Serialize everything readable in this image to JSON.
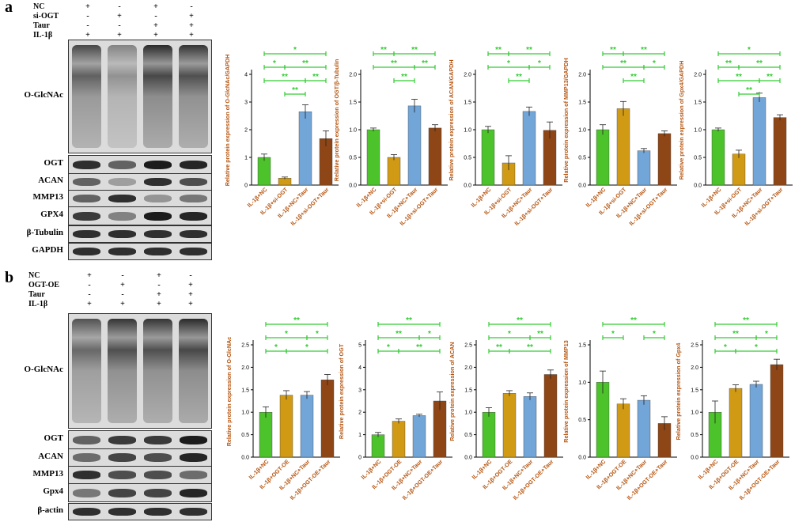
{
  "panels": [
    {
      "letter": "a",
      "conditions": [
        {
          "name": "NC",
          "signs": [
            "+",
            "-",
            "+",
            "-"
          ]
        },
        {
          "name": "si-OGT",
          "signs": [
            "-",
            "+",
            "-",
            "+"
          ]
        },
        {
          "name": "Taur",
          "signs": [
            "-",
            "-",
            "+",
            "+"
          ]
        },
        {
          "name": "IL-1β",
          "signs": [
            "+",
            "+",
            "+",
            "+"
          ]
        }
      ],
      "bands": [
        {
          "label": "O-GlcNAc",
          "tall": true,
          "intensity": [
            0.75,
            0.45,
            0.9,
            0.85
          ]
        },
        {
          "label": "OGT",
          "intensity": [
            0.85,
            0.6,
            0.95,
            0.9
          ]
        },
        {
          "label": "ACAN",
          "intensity": [
            0.6,
            0.3,
            0.85,
            0.7
          ]
        },
        {
          "label": "MMP13",
          "intensity": [
            0.6,
            0.85,
            0.35,
            0.5
          ]
        },
        {
          "label": "GPX4",
          "intensity": [
            0.8,
            0.45,
            0.95,
            0.9
          ]
        },
        {
          "label": "β-Tubulin",
          "intensity": [
            0.85,
            0.85,
            0.85,
            0.85
          ]
        },
        {
          "label": "GAPDH",
          "intensity": [
            0.85,
            0.85,
            0.85,
            0.85
          ]
        }
      ]
    },
    {
      "letter": "b",
      "conditions": [
        {
          "name": "NC",
          "signs": [
            "+",
            "-",
            "+",
            "-"
          ]
        },
        {
          "name": "OGT-OE",
          "signs": [
            "-",
            "+",
            "-",
            "+"
          ]
        },
        {
          "name": "Taur",
          "signs": [
            "-",
            "-",
            "+",
            "+"
          ]
        },
        {
          "name": "IL-1β",
          "signs": [
            "+",
            "+",
            "+",
            "+"
          ]
        }
      ],
      "bands": [
        {
          "label": "O-GlcNAc",
          "tall": true,
          "intensity": [
            0.7,
            0.85,
            0.85,
            0.9
          ]
        },
        {
          "label": "OGT",
          "intensity": [
            0.6,
            0.8,
            0.8,
            0.95
          ]
        },
        {
          "label": "ACAN",
          "intensity": [
            0.55,
            0.75,
            0.7,
            0.9
          ]
        },
        {
          "label": "MMP13",
          "intensity": [
            0.85,
            0.7,
            0.7,
            0.55
          ]
        },
        {
          "label": "Gpx4",
          "intensity": [
            0.5,
            0.75,
            0.75,
            0.9
          ]
        },
        {
          "label": "β-actin",
          "intensity": [
            0.85,
            0.85,
            0.85,
            0.85
          ]
        }
      ]
    }
  ],
  "colors": {
    "green": "#4cc22b",
    "gold": "#d19a15",
    "blue": "#72a5d8",
    "brown": "#8f4616",
    "sigline": "#33cc33"
  },
  "chart_data": [
    {
      "type": "bar",
      "ylabel": "Relative protein expression of O-GlcNAc/GAPDH",
      "categories": [
        "IL-1β+NC",
        "IL-1β+si-OGT",
        "IL-1β+NC+Taur",
        "IL-1β+si-OGT+Taur"
      ],
      "values": [
        1.0,
        0.25,
        2.65,
        1.68
      ],
      "errors": [
        0.12,
        0.04,
        0.25,
        0.28
      ],
      "ylim": [
        0,
        4
      ],
      "yticks": [
        "0",
        "1",
        "2",
        "3",
        "4"
      ],
      "sig": [
        {
          "from": 0,
          "to": 3,
          "label": "*"
        },
        {
          "from": 1,
          "to": 3,
          "label": "**"
        },
        {
          "from": 0,
          "to": 2,
          "label": "**"
        },
        {
          "from": 0,
          "to": 1,
          "label": "*"
        },
        {
          "from": 1,
          "to": 2,
          "label": "**"
        },
        {
          "from": 2,
          "to": 3,
          "label": "**"
        }
      ]
    },
    {
      "type": "bar",
      "ylabel": "Relative protein expression of OGT/β-Tubulin",
      "categories": [
        "IL-1β+NC",
        "IL-1β+si-OGT",
        "IL-1β+NC+Taur",
        "IL-1β+si-OGT+Taur"
      ],
      "values": [
        1.0,
        0.5,
        1.43,
        1.03
      ],
      "errors": [
        0.03,
        0.05,
        0.12,
        0.06
      ],
      "ylim": [
        0,
        2.0
      ],
      "yticks": [
        "0.0",
        "0.5",
        "1.0",
        "1.5",
        "2.0"
      ],
      "sig": [
        {
          "from": 1,
          "to": 3,
          "label": "**"
        },
        {
          "from": 0,
          "to": 2,
          "label": "**"
        },
        {
          "from": 0,
          "to": 1,
          "label": "**"
        },
        {
          "from": 1,
          "to": 2,
          "label": "**"
        },
        {
          "from": 2,
          "to": 3,
          "label": "**"
        }
      ]
    },
    {
      "type": "bar",
      "ylabel": "Relative protein expression of ACAN/GAPDH",
      "categories": [
        "IL-1β+NC",
        "IL-1β+si-OGT",
        "IL-1β+NC+Taur",
        "IL-1β+si-OGT+Taur"
      ],
      "values": [
        1.0,
        0.4,
        1.33,
        0.99
      ],
      "errors": [
        0.06,
        0.13,
        0.08,
        0.15
      ],
      "ylim": [
        0,
        2.0
      ],
      "yticks": [
        "0.0",
        "0.5",
        "1.0",
        "1.5",
        "2.0"
      ],
      "sig": [
        {
          "from": 1,
          "to": 3,
          "label": "**"
        },
        {
          "from": 0,
          "to": 2,
          "label": "*"
        },
        {
          "from": 0,
          "to": 1,
          "label": "**"
        },
        {
          "from": 1,
          "to": 2,
          "label": "**"
        },
        {
          "from": 2,
          "to": 3,
          "label": "*"
        }
      ]
    },
    {
      "type": "bar",
      "ylabel": "Relative protein expression of MMP13/GAPDH",
      "categories": [
        "IL-1β+NC",
        "IL-1β+si-OGT",
        "IL-1β+NC+Taur",
        "IL-1β+si-OGT+Taur"
      ],
      "values": [
        1.0,
        1.38,
        0.62,
        0.93
      ],
      "errors": [
        0.09,
        0.13,
        0.04,
        0.05
      ],
      "ylim": [
        0,
        2.0
      ],
      "yticks": [
        "0.0",
        "0.5",
        "1.0",
        "1.5",
        "2.0"
      ],
      "sig": [
        {
          "from": 1,
          "to": 3,
          "label": "**"
        },
        {
          "from": 0,
          "to": 2,
          "label": "**"
        },
        {
          "from": 0,
          "to": 1,
          "label": "**"
        },
        {
          "from": 1,
          "to": 2,
          "label": "**"
        },
        {
          "from": 2,
          "to": 3,
          "label": "*"
        }
      ]
    },
    {
      "type": "bar",
      "ylabel": "Relative protein expression of Gpx4/GAPDH",
      "categories": [
        "IL-1β+NC",
        "IL-1β+si-OGT",
        "IL-1β+NC+Taur",
        "IL-1β+si-OGT+Taur"
      ],
      "values": [
        1.0,
        0.56,
        1.58,
        1.22
      ],
      "errors": [
        0.03,
        0.07,
        0.08,
        0.05
      ],
      "ylim": [
        0,
        2.0
      ],
      "yticks": [
        "0.0",
        "0.5",
        "1.0",
        "1.5",
        "2.0"
      ],
      "sig": [
        {
          "from": 0,
          "to": 3,
          "label": "*"
        },
        {
          "from": 1,
          "to": 3,
          "label": "**"
        },
        {
          "from": 0,
          "to": 2,
          "label": "**"
        },
        {
          "from": 0,
          "to": 1,
          "label": "**"
        },
        {
          "from": 1,
          "to": 2,
          "label": "**"
        },
        {
          "from": 2,
          "to": 3,
          "label": "**"
        }
      ]
    },
    {
      "type": "bar",
      "ylabel": "Relative protein expression of O-GlcNAc",
      "categories": [
        "IL-1β+NC",
        "IL-1β+OGT-OE",
        "IL-1β+NC+Taur",
        "IL-1β+OGT-OE+Taur"
      ],
      "values": [
        1.0,
        1.38,
        1.38,
        1.72
      ],
      "errors": [
        0.12,
        0.1,
        0.08,
        0.12
      ],
      "ylim": [
        0,
        2.5
      ],
      "yticks": [
        "0.0",
        "0.5",
        "1.0",
        "1.5",
        "2.0",
        "2.5"
      ],
      "sig": [
        {
          "from": 0,
          "to": 3,
          "label": "**"
        },
        {
          "from": 0,
          "to": 2,
          "label": "*"
        },
        {
          "from": 2,
          "to": 3,
          "label": "*"
        },
        {
          "from": 0,
          "to": 1,
          "label": "*"
        },
        {
          "from": 1,
          "to": 3,
          "label": "*"
        }
      ]
    },
    {
      "type": "bar",
      "ylabel": "Relative protein expression of OGT",
      "categories": [
        "IL-1β+NC",
        "IL-1β+OGT-OE",
        "IL-1β+NC+Taur",
        "IL-1β+OGT-OE+Taur"
      ],
      "values": [
        1.0,
        1.6,
        1.85,
        2.5
      ],
      "errors": [
        0.1,
        0.1,
        0.06,
        0.4
      ],
      "ylim": [
        0,
        5
      ],
      "yticks": [
        "0",
        "1",
        "2",
        "3",
        "4",
        "5"
      ],
      "sig": [
        {
          "from": 0,
          "to": 3,
          "label": "**"
        },
        {
          "from": 0,
          "to": 2,
          "label": "**"
        },
        {
          "from": 2,
          "to": 3,
          "label": "*"
        },
        {
          "from": 0,
          "to": 1,
          "label": "*"
        },
        {
          "from": 1,
          "to": 3,
          "label": "**"
        }
      ]
    },
    {
      "type": "bar",
      "ylabel": "Relative protein expression of ACAN",
      "categories": [
        "IL-1β+NC",
        "IL-1β+OGT-OE",
        "IL-1β+NC+Taur",
        "IL-1β+OGT-OE+Taur"
      ],
      "values": [
        1.0,
        1.42,
        1.35,
        1.84
      ],
      "errors": [
        0.1,
        0.06,
        0.08,
        0.1
      ],
      "ylim": [
        0,
        2.5
      ],
      "yticks": [
        "0.0",
        "0.5",
        "1.0",
        "1.5",
        "2.0",
        "2.5"
      ],
      "sig": [
        {
          "from": 0,
          "to": 3,
          "label": "**"
        },
        {
          "from": 0,
          "to": 2,
          "label": "*"
        },
        {
          "from": 2,
          "to": 3,
          "label": "**"
        },
        {
          "from": 0,
          "to": 1,
          "label": "**"
        },
        {
          "from": 1,
          "to": 3,
          "label": "**"
        }
      ]
    },
    {
      "type": "bar",
      "ylabel": "Relative protein expression of MMP13",
      "categories": [
        "IL-1β+NC",
        "IL-1β+OGT-OE",
        "IL-1β+NC+Taur",
        "IL-1β+OGT-OE+Taur"
      ],
      "values": [
        1.0,
        0.71,
        0.76,
        0.45
      ],
      "errors": [
        0.15,
        0.07,
        0.06,
        0.09
      ],
      "ylim": [
        0,
        1.5
      ],
      "yticks": [
        "0.0",
        "0.5",
        "1.0",
        "1.5"
      ],
      "sig": [
        {
          "from": 0,
          "to": 3,
          "label": "**"
        },
        {
          "from": 0,
          "to": 1,
          "label": "*"
        },
        {
          "from": 2,
          "to": 3,
          "label": "*"
        }
      ]
    },
    {
      "type": "bar",
      "ylabel": "Relative protein expression of Gpx4",
      "categories": [
        "IL-1β+NC",
        "IL-1β+OGT-OE",
        "IL-1β+NC+Taur",
        "IL-1β+OGT-OE+Taur"
      ],
      "values": [
        1.0,
        1.53,
        1.62,
        2.06
      ],
      "errors": [
        0.25,
        0.08,
        0.07,
        0.12
      ],
      "ylim": [
        0,
        2.5
      ],
      "yticks": [
        "0.0",
        "0.5",
        "1.0",
        "1.5",
        "2.0",
        "2.5"
      ],
      "sig": [
        {
          "from": 0,
          "to": 3,
          "label": "**"
        },
        {
          "from": 0,
          "to": 2,
          "label": "**"
        },
        {
          "from": 2,
          "to": 3,
          "label": "*"
        },
        {
          "from": 0,
          "to": 1,
          "label": "*"
        },
        {
          "from": 1,
          "to": 3,
          "label": "*"
        }
      ]
    }
  ]
}
